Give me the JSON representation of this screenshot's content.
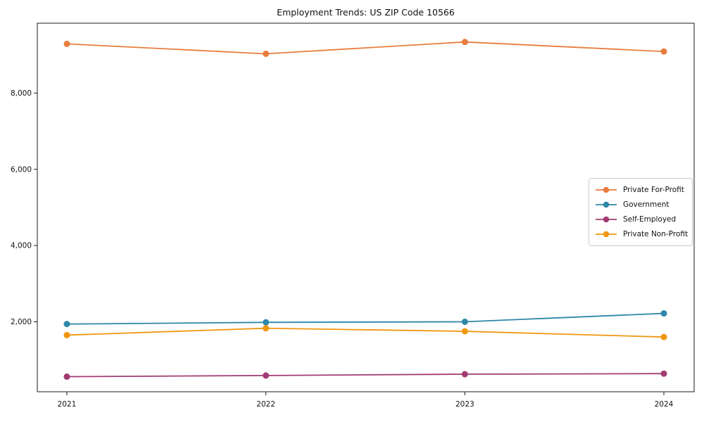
{
  "page": {
    "background": "#ffffff",
    "axis_color": "#1a1a1a",
    "legend_border_color": "#cccccc"
  },
  "chart_data": {
    "type": "line",
    "title": "Employment Trends: US ZIP Code 10566",
    "xlabel": "",
    "ylabel": "",
    "x": [
      2021,
      2022,
      2023,
      2024
    ],
    "x_tick_labels": [
      "2021",
      "2022",
      "2023",
      "2024"
    ],
    "y_ticks": [
      2000,
      4000,
      6000,
      8000
    ],
    "y_tick_labels": [
      "2,000",
      "4,000",
      "6,000",
      "8,000"
    ],
    "ylim": [
      164,
      9832
    ],
    "grid": false,
    "legend_position": "right-middle",
    "marker": "circle",
    "series": [
      {
        "name": "Private For-Profit",
        "color": "#e87d3e",
        "values": [
          9290,
          9030,
          9340,
          9090
        ]
      },
      {
        "name": "Government",
        "color": "#2e87a8",
        "values": [
          1940,
          1985,
          2000,
          2220
        ]
      },
      {
        "name": "Self-Employed",
        "color": "#a23b72",
        "values": [
          560,
          590,
          625,
          640
        ]
      },
      {
        "name": "Private Non-Profit",
        "color": "#f0970f",
        "values": [
          1650,
          1830,
          1750,
          1600
        ]
      }
    ]
  }
}
